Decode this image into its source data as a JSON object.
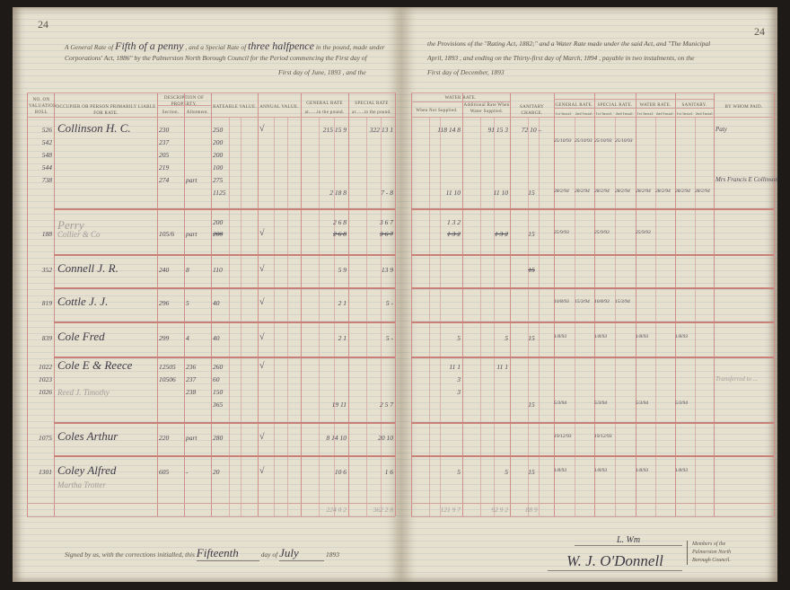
{
  "page_numbers": {
    "left": "24",
    "right": "24"
  },
  "heading": {
    "left_line1": [
      "A General Rate of",
      "Fifth of a penny",
      ", and a Special Rate of",
      "three halfpence",
      "in the pound, made under"
    ],
    "left_line2": "Corporations' Act, 1886\" by the Palmerston North Borough Council for the Period commencing the First day of",
    "left_line3": "First day of June, 1893 , and the",
    "right_line1": "the Provisions of the \"Rating Act, 1882;\" and a Water Rate made under the said Act, and \"The Municipal",
    "right_line2": "April, 1893 , and ending on the Thirty-first day of March, 1894 , payable in two instalments, on the",
    "right_line3": "First day of December, 1893"
  },
  "columns": {
    "valuation_no": "No. on Valuation Roll",
    "occupier": "Occupier or Person Primarily Liable for Rate.",
    "description": "Description of Property.",
    "section": "Section.",
    "allotment": "Allotment.",
    "rateable_value": "Rateable Value.",
    "annual_value": "Annual Value.",
    "general_rate": "General Rate",
    "general_rate_sub": "at......in the pound.",
    "special_rate": "Special Rate",
    "special_rate_sub": "at......in the pound.",
    "water_rate": "Water Rate.",
    "when_not_supplied": "When Not Supplied.",
    "additional_rate": "Additional Rate When Water Supplied.",
    "sanitary_charge": "Sanitary Charge.",
    "paid_general": "General Rate.",
    "paid_special": "Special Rate.",
    "paid_water": "Water Rate.",
    "paid_sanitary": "Sanitary.",
    "first_instal": "1st Instal.",
    "second_instal": "2nd Instal.",
    "by_whom_paid": "By Whom Paid."
  },
  "rows": [
    {
      "cells": {
        "vno": [
          "526",
          "542",
          "548",
          "544",
          "738"
        ],
        "name": [
          "Collinson H. C."
        ],
        "section": [
          "230",
          "237",
          "205",
          "219",
          "274"
        ],
        "allot": [
          "",
          "",
          "",
          "",
          "part"
        ],
        "rateable": [
          "250",
          "200",
          "200",
          "100",
          "275",
          "1125"
        ],
        "general": [
          "215 15 9",
          "",
          "",
          "",
          "",
          "2 18 8"
        ],
        "special": [
          "322 13 1",
          "",
          "",
          "",
          "",
          "7 - 8"
        ],
        "water_ns": [
          "118 14 8",
          "",
          "",
          "",
          "",
          "11 10"
        ],
        "additional": [
          "91 15 3",
          "",
          "",
          "",
          "",
          "11 10"
        ],
        "sanitary": [
          "72 10 –",
          "",
          "",
          "",
          "",
          "15"
        ],
        "g1": [
          "",
          "25/10/93",
          "",
          "",
          "",
          "28/2/94"
        ],
        "g2": [
          "",
          "25/10/93",
          "",
          "",
          "",
          "28/2/94"
        ],
        "s1": [
          "",
          "25/10/93",
          "",
          "",
          "",
          "28/2/94"
        ],
        "s2": [
          "",
          "25/10/93",
          "",
          "",
          "",
          "28/2/94"
        ],
        "w1": [
          "",
          "",
          "",
          "",
          "",
          "28/2/94"
        ],
        "w2": [
          "",
          "",
          "",
          "",
          "",
          "28/2/94"
        ],
        "n1": [
          "",
          "",
          "",
          "",
          "",
          "28/2/94"
        ],
        "n2": [
          "",
          "",
          "",
          "",
          "",
          "28/2/94"
        ],
        "by_whom": [
          "Paty",
          "",
          "",
          "",
          "Mrs Francis E Collinson"
        ]
      },
      "checks": 1
    },
    {
      "cells": {
        "vno": [
          "",
          "188"
        ],
        "name": [
          "Perry",
          "Collier & Co"
        ],
        "section": [
          "",
          "105/6"
        ],
        "allot": [
          "",
          "part"
        ],
        "rateable": [
          "200",
          "200"
        ],
        "general": [
          "2 6 8",
          "2 6 8"
        ],
        "special": [
          "3 6 7",
          "3 6 7"
        ],
        "water_ns": [
          "1 3 2",
          "1 3 2"
        ],
        "additional": [
          "",
          "1 3 2"
        ],
        "sanitary": [
          "",
          "15"
        ],
        "g1": [
          "",
          "25/9/93"
        ],
        "s1": [
          "",
          "25/9/93"
        ],
        "w1": [
          "",
          "25/9/93"
        ]
      },
      "checks": 1
    },
    {
      "cells": {
        "vno": [
          "352"
        ],
        "name": [
          "Connell J. R."
        ],
        "section": [
          "240"
        ],
        "allot": [
          "8"
        ],
        "rateable": [
          "110"
        ],
        "general": [
          "5 9"
        ],
        "special": [
          "13 9"
        ],
        "sanitary": [
          "15"
        ]
      },
      "checks": 1
    },
    {
      "cells": {
        "vno": [
          "819"
        ],
        "name": [
          "Cottle J. J."
        ],
        "section": [
          "296"
        ],
        "allot": [
          "5"
        ],
        "rateable": [
          "40"
        ],
        "general": [
          "2 1"
        ],
        "special": [
          "5 -"
        ],
        "g1": [
          "10/8/93"
        ],
        "g2": [
          "15/3/94"
        ],
        "s1": [
          "10/8/93"
        ],
        "s2": [
          "15/3/94"
        ]
      },
      "checks": 1
    },
    {
      "cells": {
        "vno": [
          "839"
        ],
        "name": [
          "Cole Fred"
        ],
        "section": [
          "299"
        ],
        "allot": [
          "4"
        ],
        "rateable": [
          "40"
        ],
        "general": [
          "2 1"
        ],
        "special": [
          "5 -"
        ],
        "water_ns": [
          "5"
        ],
        "additional": [
          "5"
        ],
        "sanitary": [
          "15"
        ],
        "g1": [
          "1/8/93"
        ],
        "s1": [
          "1/8/93"
        ],
        "w1": [
          "1/8/93"
        ],
        "n1": [
          "1/8/93"
        ]
      },
      "checks": 1
    },
    {
      "cells": {
        "vno": [
          "1022",
          "1023",
          "1026"
        ],
        "name": [
          "Cole E & Reece",
          "",
          "Reed J. Timothy"
        ],
        "section": [
          "12505",
          "10506",
          ""
        ],
        "allot": [
          "236",
          "237",
          "238"
        ],
        "rateable": [
          "260",
          "60",
          "150",
          "365"
        ],
        "general": [
          "",
          "",
          "",
          "19 11"
        ],
        "special": [
          "",
          "",
          "",
          "2 5 7"
        ],
        "water_ns": [
          "11 1",
          "3",
          "3"
        ],
        "additional": [
          "11 1"
        ],
        "sanitary": [
          "",
          "",
          "",
          "15"
        ],
        "g1": [
          "",
          "",
          "",
          "5/3/94"
        ],
        "s1": [
          "",
          "",
          "",
          "5/3/94"
        ],
        "w1": [
          "",
          "",
          "",
          "5/3/94"
        ],
        "n1": [
          "",
          "",
          "",
          "5/3/94"
        ],
        "by_whom": [
          "",
          "Transferred to ..."
        ]
      },
      "checks": 1
    },
    {
      "cells": {
        "vno": [
          "1075"
        ],
        "name": [
          "Coles Arthur"
        ],
        "section": [
          "220"
        ],
        "allot": [
          "part"
        ],
        "rateable": [
          "280"
        ],
        "general": [
          "8 14 10"
        ],
        "special": [
          "20 10"
        ],
        "g1": [
          "19/12/93"
        ],
        "s1": [
          "19/12/93"
        ]
      },
      "checks": 1
    },
    {
      "cells": {
        "vno": [
          "1301"
        ],
        "name": [
          "Coley Alfred",
          "Martha Trotter"
        ],
        "section": [
          "605"
        ],
        "allot": [
          "-"
        ],
        "rateable": [
          "20"
        ],
        "general": [
          "10 6"
        ],
        "special": [
          "1 6"
        ],
        "water_ns": [
          "5"
        ],
        "additional": [
          "5"
        ],
        "sanitary": [
          "15"
        ],
        "g1": [
          "1/8/93"
        ],
        "s1": [
          "1/8/93"
        ],
        "w1": [
          "1/8/93"
        ],
        "n1": [
          "1/8/93"
        ]
      },
      "checks": 1
    }
  ],
  "totals": {
    "general": "224 0 2",
    "special": "362 2 8",
    "water_ns": "121 9 7",
    "additional": "92 9 2",
    "sanitary": "88 9"
  },
  "footer": {
    "signed_text": "Signed by us, with the corrections initialled, this",
    "day_value": "Fifteenth",
    "day_of": "day of",
    "month_value": "July",
    "year": "1893",
    "signature_1": "L. Wm",
    "signature_2": "W. J. O'Donnell",
    "members_line1": "Members of the",
    "members_line2": "Palmerston North",
    "members_line3": "Borough Council."
  },
  "colors": {
    "paper": "#e6e0cf",
    "red_rule": "#cf8f8a",
    "blue_rule": "#a5b0c4",
    "ink": "#3d3a44"
  }
}
